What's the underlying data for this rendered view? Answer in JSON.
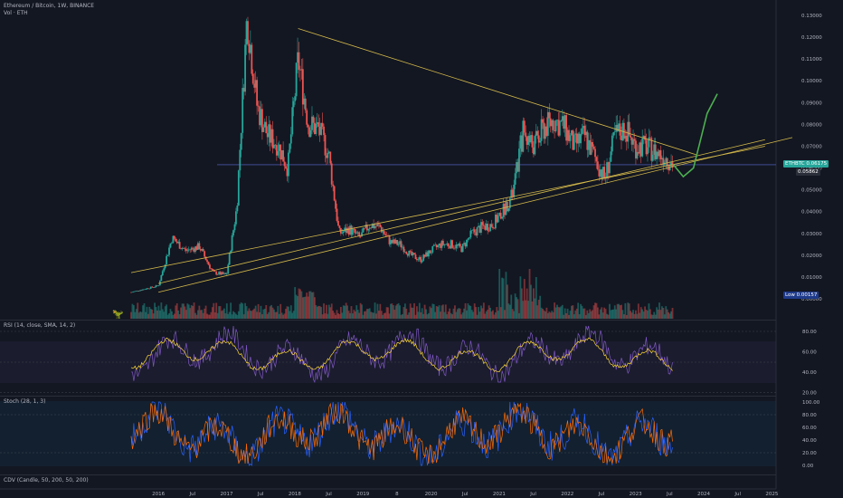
{
  "header": {
    "symbol": "Ethereum / Bitcoin, 1W, BINANCE",
    "volume": "Vol · ETH"
  },
  "indicators": {
    "rsi": "RSI (14, close, SMA, 14, 2)",
    "stoch": "Stoch (28, 1, 3)",
    "cdv": "CDV (Candle, 50, 200, 50, 200)"
  },
  "price_axis_labels": [
    "0.13000",
    "0.12000",
    "0.11000",
    "0.10000",
    "0.09000",
    "0.08000",
    "0.07000",
    "0.06000",
    "0.05000",
    "0.04000",
    "0.03000",
    "0.02000",
    "0.01000",
    "0.00000"
  ],
  "rsi_axis_labels": [
    "80.00",
    "60.00",
    "40.00",
    "20.00"
  ],
  "stoch_axis_labels": [
    "100.00",
    "80.00",
    "60.00",
    "40.00",
    "20.00",
    "0.00"
  ],
  "time_axis_labels": [
    "2016",
    "Jul",
    "2017",
    "Jul",
    "2018",
    "Jul",
    "2019",
    "8",
    "2020",
    "Jul",
    "2021",
    "Jul",
    "2022",
    "Jul",
    "2023",
    "Jul",
    "2024",
    "Jul",
    "2025"
  ],
  "price_tags": {
    "last_symbol": "ETHBTC",
    "last_value": "0.06175",
    "second_value": "0.05862",
    "low_label": "Low",
    "low_value": "0.00157"
  },
  "colors": {
    "background": "#131722",
    "up": "#26a69a",
    "down": "#ef5350",
    "trendline": "#d4b94a",
    "projection": "#4caf50",
    "rsi_line": "#7e57c2",
    "rsi_ma": "#fdd835",
    "stoch_k": "#2962ff",
    "stoch_d": "#ff6d00",
    "last_tag": "#26a69a"
  },
  "chart_data": {
    "type": "candlestick",
    "title": "Ethereum / Bitcoin, 1W, BINANCE",
    "ylabel": "ETH/BTC",
    "ylim": [
      0,
      0.135
    ],
    "x": [
      2015.6,
      2016.0,
      2016.2,
      2016.4,
      2016.6,
      2016.8,
      2017.0,
      2017.15,
      2017.3,
      2017.45,
      2017.6,
      2017.75,
      2017.9,
      2018.05,
      2018.2,
      2018.35,
      2018.5,
      2018.65,
      2018.8,
      2018.95,
      2019.1,
      2019.25,
      2019.4,
      2019.55,
      2019.7,
      2019.85,
      2020.0,
      2020.15,
      2020.3,
      2020.45,
      2020.6,
      2020.75,
      2020.9,
      2021.05,
      2021.2,
      2021.35,
      2021.5,
      2021.65,
      2021.8,
      2021.95,
      2022.1,
      2022.25,
      2022.4,
      2022.55,
      2022.7,
      2022.85,
      2023.0,
      2023.15,
      2023.3,
      2023.45,
      2023.55
    ],
    "close": [
      0.003,
      0.006,
      0.028,
      0.022,
      0.024,
      0.012,
      0.011,
      0.042,
      0.13,
      0.088,
      0.075,
      0.071,
      0.06,
      0.11,
      0.08,
      0.078,
      0.066,
      0.03,
      0.032,
      0.028,
      0.034,
      0.033,
      0.026,
      0.025,
      0.02,
      0.018,
      0.022,
      0.025,
      0.025,
      0.023,
      0.03,
      0.033,
      0.034,
      0.04,
      0.048,
      0.077,
      0.07,
      0.078,
      0.082,
      0.079,
      0.07,
      0.075,
      0.065,
      0.055,
      0.075,
      0.078,
      0.07,
      0.07,
      0.067,
      0.065,
      0.06175
    ],
    "projection": {
      "x": [
        2023.55,
        2023.7,
        2023.85,
        2024.05,
        2024.2
      ],
      "y": [
        0.06175,
        0.056,
        0.06,
        0.085,
        0.094
      ]
    },
    "trendlines": [
      {
        "x": [
          2018.05,
          2023.9
        ],
        "y": [
          0.124,
          0.066
        ]
      },
      {
        "x": [
          2015.6,
          2024.9
        ],
        "y": [
          0.012,
          0.07
        ]
      },
      {
        "x": [
          2016.0,
          2024.9
        ],
        "y": [
          0.007,
          0.073
        ]
      },
      {
        "x": [
          2016.0,
          2025.3
        ],
        "y": [
          0.003,
          0.074
        ]
      }
    ]
  }
}
